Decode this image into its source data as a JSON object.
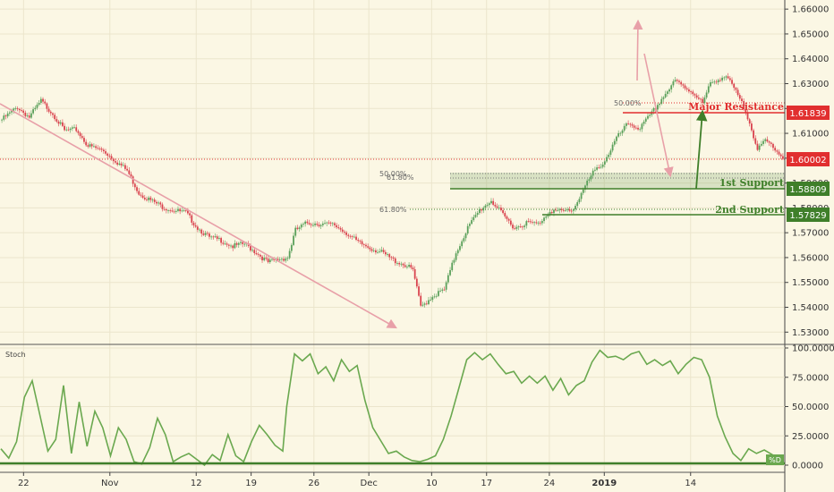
{
  "colors": {
    "background": "#fbf7e4",
    "up_candle": "#5aa05a",
    "down_candle": "#d9434e",
    "resistance": "#e12f2f",
    "support": "#3f7f2a",
    "trend_arrow": "#e8a0a8",
    "stoch_line": "#6aa84f",
    "current_price": "#e12f2f",
    "grid": "#ebe5cc"
  },
  "chart_data": {
    "type": "candlestick",
    "price_axis": {
      "ylim": [
        1.5265,
        1.6615
      ],
      "ticks": [
        "1.66000",
        "1.65000",
        "1.64000",
        "1.63000",
        "1.62000",
        "1.61000",
        "1.60000",
        "1.59000",
        "1.58000",
        "1.57000",
        "1.56000",
        "1.55000",
        "1.54000",
        "1.53000"
      ]
    },
    "x_axis": {
      "ticks": [
        {
          "label": "22",
          "pos": 0.03
        },
        {
          "label": "Nov",
          "pos": 0.14
        },
        {
          "label": "12",
          "pos": 0.25
        },
        {
          "label": "19",
          "pos": 0.32
        },
        {
          "label": "26",
          "pos": 0.4
        },
        {
          "label": "Dec",
          "pos": 0.47
        },
        {
          "label": "10",
          "pos": 0.55
        },
        {
          "label": "17",
          "pos": 0.62
        },
        {
          "label": "24",
          "pos": 0.7
        },
        {
          "label": "2019",
          "pos": 0.77
        },
        {
          "label": "14",
          "pos": 0.88
        }
      ]
    },
    "close_path": [
      [
        0,
        1.6155
      ],
      [
        8,
        1.6205
      ],
      [
        14,
        1.6165
      ],
      [
        20,
        1.623
      ],
      [
        26,
        1.618
      ],
      [
        32,
        1.611
      ],
      [
        38,
        1.6115
      ],
      [
        44,
        1.605
      ],
      [
        52,
        1.603
      ],
      [
        58,
        1.599
      ],
      [
        64,
        1.595
      ],
      [
        70,
        1.586
      ],
      [
        76,
        1.583
      ],
      [
        82,
        1.5805
      ],
      [
        88,
        1.579
      ],
      [
        94,
        1.578
      ],
      [
        100,
        1.572
      ],
      [
        106,
        1.568
      ],
      [
        112,
        1.567
      ],
      [
        118,
        1.5645
      ],
      [
        124,
        1.5655
      ],
      [
        130,
        1.562
      ],
      [
        136,
        1.558
      ],
      [
        142,
        1.5595
      ],
      [
        146,
        1.56
      ],
      [
        150,
        1.571
      ],
      [
        156,
        1.574
      ],
      [
        164,
        1.5735
      ],
      [
        170,
        1.573
      ],
      [
        176,
        1.57
      ],
      [
        182,
        1.566
      ],
      [
        188,
        1.564
      ],
      [
        194,
        1.562
      ],
      [
        200,
        1.559
      ],
      [
        206,
        1.557
      ],
      [
        210,
        1.555
      ],
      [
        214,
        1.54
      ],
      [
        220,
        1.5445
      ],
      [
        226,
        1.547
      ],
      [
        232,
        1.562
      ],
      [
        238,
        1.572
      ],
      [
        244,
        1.579
      ],
      [
        250,
        1.583
      ],
      [
        256,
        1.577
      ],
      [
        262,
        1.572
      ],
      [
        268,
        1.574
      ],
      [
        274,
        1.5735
      ],
      [
        280,
        1.579
      ],
      [
        286,
        1.5785
      ],
      [
        292,
        1.5795
      ],
      [
        296,
        1.586
      ],
      [
        302,
        1.594
      ],
      [
        308,
        1.599
      ],
      [
        314,
        1.608
      ],
      [
        320,
        1.614
      ],
      [
        326,
        1.612
      ],
      [
        332,
        1.618
      ],
      [
        338,
        1.625
      ],
      [
        344,
        1.631
      ],
      [
        350,
        1.628
      ],
      [
        354,
        1.626
      ],
      [
        358,
        1.622
      ],
      [
        362,
        1.63
      ],
      [
        366,
        1.632
      ],
      [
        370,
        1.633
      ],
      [
        374,
        1.628
      ],
      [
        378,
        1.622
      ],
      [
        382,
        1.615
      ],
      [
        386,
        1.603
      ],
      [
        390,
        1.607
      ],
      [
        394,
        1.605
      ],
      [
        399,
        1.6
      ]
    ],
    "stochastic": {
      "title": "Stoch",
      "ticks": [
        "100.0000",
        "75.0000",
        "50.0000",
        "25.0000",
        "0.0000"
      ],
      "tag": "%D",
      "d": [
        [
          0,
          14
        ],
        [
          4,
          6
        ],
        [
          8,
          20
        ],
        [
          12,
          58
        ],
        [
          16,
          72
        ],
        [
          20,
          42
        ],
        [
          24,
          12
        ],
        [
          28,
          22
        ],
        [
          32,
          68
        ],
        [
          36,
          10
        ],
        [
          40,
          54
        ],
        [
          44,
          16
        ],
        [
          48,
          46
        ],
        [
          52,
          32
        ],
        [
          56,
          8
        ],
        [
          60,
          32
        ],
        [
          64,
          22
        ],
        [
          68,
          3
        ],
        [
          72,
          1
        ],
        [
          76,
          15
        ],
        [
          80,
          40
        ],
        [
          84,
          26
        ],
        [
          88,
          3
        ],
        [
          92,
          7
        ],
        [
          96,
          10
        ],
        [
          100,
          5
        ],
        [
          104,
          0
        ],
        [
          108,
          9
        ],
        [
          112,
          4
        ],
        [
          116,
          26
        ],
        [
          120,
          8
        ],
        [
          124,
          3
        ],
        [
          128,
          20
        ],
        [
          132,
          34
        ],
        [
          136,
          26
        ],
        [
          140,
          17
        ],
        [
          144,
          12
        ],
        [
          146,
          50
        ],
        [
          150,
          95
        ],
        [
          154,
          89
        ],
        [
          158,
          95
        ],
        [
          162,
          78
        ],
        [
          166,
          84
        ],
        [
          170,
          72
        ],
        [
          174,
          90
        ],
        [
          178,
          80
        ],
        [
          182,
          85
        ],
        [
          186,
          55
        ],
        [
          190,
          32
        ],
        [
          194,
          21
        ],
        [
          198,
          10
        ],
        [
          202,
          12
        ],
        [
          206,
          7
        ],
        [
          210,
          4
        ],
        [
          214,
          3
        ],
        [
          218,
          5
        ],
        [
          222,
          8
        ],
        [
          226,
          22
        ],
        [
          230,
          42
        ],
        [
          234,
          66
        ],
        [
          238,
          90
        ],
        [
          242,
          96
        ],
        [
          246,
          90
        ],
        [
          250,
          95
        ],
        [
          254,
          86
        ],
        [
          258,
          78
        ],
        [
          262,
          80
        ],
        [
          266,
          70
        ],
        [
          270,
          76
        ],
        [
          274,
          70
        ],
        [
          278,
          76
        ],
        [
          282,
          64
        ],
        [
          286,
          74
        ],
        [
          290,
          60
        ],
        [
          294,
          68
        ],
        [
          298,
          72
        ],
        [
          302,
          88
        ],
        [
          306,
          98
        ],
        [
          310,
          92
        ],
        [
          314,
          93
        ],
        [
          318,
          90
        ],
        [
          322,
          95
        ],
        [
          326,
          97
        ],
        [
          330,
          86
        ],
        [
          334,
          90
        ],
        [
          338,
          85
        ],
        [
          342,
          89
        ],
        [
          346,
          78
        ],
        [
          350,
          86
        ],
        [
          354,
          92
        ],
        [
          358,
          90
        ],
        [
          362,
          75
        ],
        [
          366,
          42
        ],
        [
          370,
          24
        ],
        [
          374,
          10
        ],
        [
          378,
          4
        ],
        [
          382,
          14
        ],
        [
          386,
          10
        ],
        [
          390,
          13
        ],
        [
          394,
          9
        ],
        [
          399,
          3
        ]
      ]
    }
  },
  "annotations": {
    "fib_50_left": "50.00%",
    "fib_618_upper": "61.80%",
    "fib_618_lower": "61.80%",
    "fib_50_right": "50.00%",
    "major_resistance": "Major Resistance",
    "first_support": "1st Support",
    "second_support": "2nd Support"
  },
  "price_levels": {
    "resistance": {
      "value": 1.61839,
      "label": "1.61839"
    },
    "current": {
      "value": 1.60002,
      "label": "1.60002"
    },
    "support1": {
      "value": 1.58809,
      "label": "1.58809"
    },
    "support2": {
      "value": 1.57829,
      "label": "1.57829"
    }
  }
}
